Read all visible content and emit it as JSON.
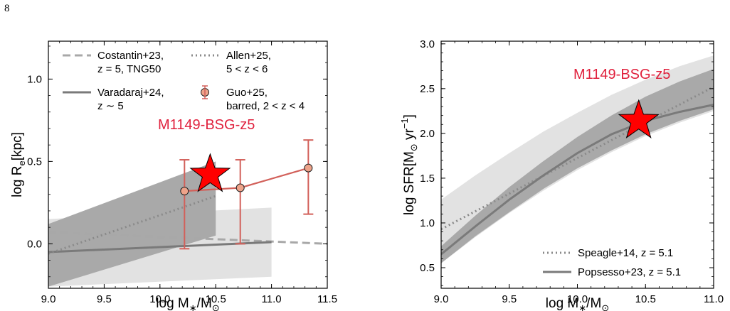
{
  "page_number": "8",
  "colors": {
    "band_light": "#e2e2e2",
    "band_dark": "#a9a9a9",
    "line_gray": "#7a7a7a",
    "dashed_gray": "#a8a8a8",
    "dotted_gray": "#8a8a8a",
    "guo_line": "#d2605a",
    "guo_marker": "#eea38a",
    "star_fill": "#ff0000",
    "label_red": "#e0213d"
  },
  "chart_data": [
    {
      "type": "line",
      "xlabel": "log M",
      "xlabel_sub": "∗",
      "xlabel_tail": "/M",
      "xlabel_sub2": "⊙",
      "ylabel": "log R",
      "ylabel_sub": "e",
      "ylabel_tail": "[kpc]",
      "xlim": [
        9.0,
        11.5
      ],
      "ylim": [
        -0.27,
        1.23
      ],
      "xticks": [
        "9.0",
        "9.5",
        "10.0",
        "10.5",
        "11.0",
        "11.5"
      ],
      "yticks": [
        "0.0",
        "0.5",
        "1.0"
      ],
      "bands": [
        {
          "x": [
            9.0,
            11.0
          ],
          "y_low": [
            -0.26,
            -0.2
          ],
          "y_high": [
            0.15,
            0.22
          ]
        },
        {
          "x": [
            9.0,
            10.5
          ],
          "y_low": [
            -0.26,
            0.05
          ],
          "y_high": [
            0.12,
            0.5
          ]
        }
      ],
      "series": [
        {
          "name": "Costantin+23, z = 5, TNG50",
          "style": "dashed",
          "x": [
            9.0,
            11.5
          ],
          "y": [
            0.07,
            0.0
          ]
        },
        {
          "name": "Varadaraj+24, z ∼ 5",
          "style": "solid",
          "x": [
            9.0,
            11.0
          ],
          "y": [
            -0.05,
            0.01
          ]
        },
        {
          "name": "Allen+25, 5 < z < 6",
          "style": "dotted",
          "x": [
            9.0,
            10.5
          ],
          "y": [
            -0.06,
            0.29
          ]
        },
        {
          "name": "Guo+25, barred, 2 < z < 4",
          "style": "errorbar",
          "x": [
            10.22,
            10.72,
            11.33
          ],
          "y": [
            0.32,
            0.34,
            0.46
          ],
          "yerr_low": [
            0.35,
            0.34,
            0.28
          ],
          "yerr_high": [
            0.19,
            0.17,
            0.17
          ]
        }
      ],
      "legend": {
        "col1": [
          {
            "style": "dashed",
            "lines": [
              "Costantin+23,",
              "z = 5, TNG50"
            ]
          },
          {
            "style": "solid",
            "lines": [
              "Varadaraj+24,",
              "z ∼ 5"
            ]
          }
        ],
        "col2": [
          {
            "style": "dotted",
            "lines": [
              "Allen+25,",
              "5 < z < 6"
            ]
          },
          {
            "style": "marker",
            "lines": [
              "Guo+25,",
              "barred, 2 < z < 4"
            ]
          }
        ],
        "placement": "top"
      },
      "star": {
        "label": "M1149-BSG-z5",
        "x": 10.45,
        "y": 0.42
      }
    },
    {
      "type": "line",
      "xlabel": "log M",
      "xlabel_sub": "∗",
      "xlabel_tail": "/M",
      "xlabel_sub2": "⊙",
      "ylabel": "log SFR[M",
      "ylabel_sub": "⊙",
      "ylabel_tail": " yr",
      "ylabel_sup": "−1",
      "ylabel_end": "]",
      "xlim": [
        9.0,
        11.0
      ],
      "ylim": [
        0.27,
        3.03
      ],
      "xticks": [
        "9.0",
        "9.5",
        "10.0",
        "10.5",
        "11.0"
      ],
      "yticks": [
        "0.5",
        "1.0",
        "1.5",
        "2.0",
        "2.5",
        "3.0"
      ],
      "bands": [
        {
          "x": [
            9.0,
            9.25,
            9.5,
            9.75,
            10.0,
            10.25,
            10.5,
            10.75,
            11.0
          ],
          "y_low": [
            0.55,
            0.84,
            1.11,
            1.36,
            1.59,
            1.79,
            1.97,
            2.12,
            2.25
          ],
          "y_high": [
            1.26,
            1.53,
            1.78,
            2.02,
            2.23,
            2.43,
            2.6,
            2.75,
            2.87
          ]
        },
        {
          "x": [
            9.0,
            9.25,
            9.5,
            9.75,
            10.0,
            10.25,
            10.5,
            10.75,
            11.0
          ],
          "y_low": [
            0.55,
            0.85,
            1.12,
            1.38,
            1.61,
            1.81,
            1.99,
            2.14,
            2.27
          ],
          "y_high": [
            0.74,
            1.08,
            1.4,
            1.69,
            1.96,
            2.2,
            2.41,
            2.58,
            2.72
          ]
        }
      ],
      "series": [
        {
          "name": "Speagle+14, z = 5.1",
          "style": "dotted",
          "x": [
            9.0,
            11.0
          ],
          "y": [
            0.93,
            2.52
          ]
        },
        {
          "name": "Popsesso+23, z = 5.1",
          "style": "solid",
          "x": [
            9.0,
            9.25,
            9.5,
            9.75,
            10.0,
            10.25,
            10.5,
            10.75,
            11.0
          ],
          "y": [
            0.65,
            0.96,
            1.26,
            1.53,
            1.78,
            1.99,
            2.14,
            2.24,
            2.32
          ]
        }
      ],
      "legend": {
        "items": [
          {
            "style": "dotted",
            "label": "Speagle+14, z = 5.1"
          },
          {
            "style": "solid",
            "label": "Popsesso+23, z = 5.1"
          }
        ],
        "placement": "lower-right"
      },
      "star": {
        "label": "M1149-BSG-z5",
        "x": 10.45,
        "y": 2.14
      }
    }
  ]
}
